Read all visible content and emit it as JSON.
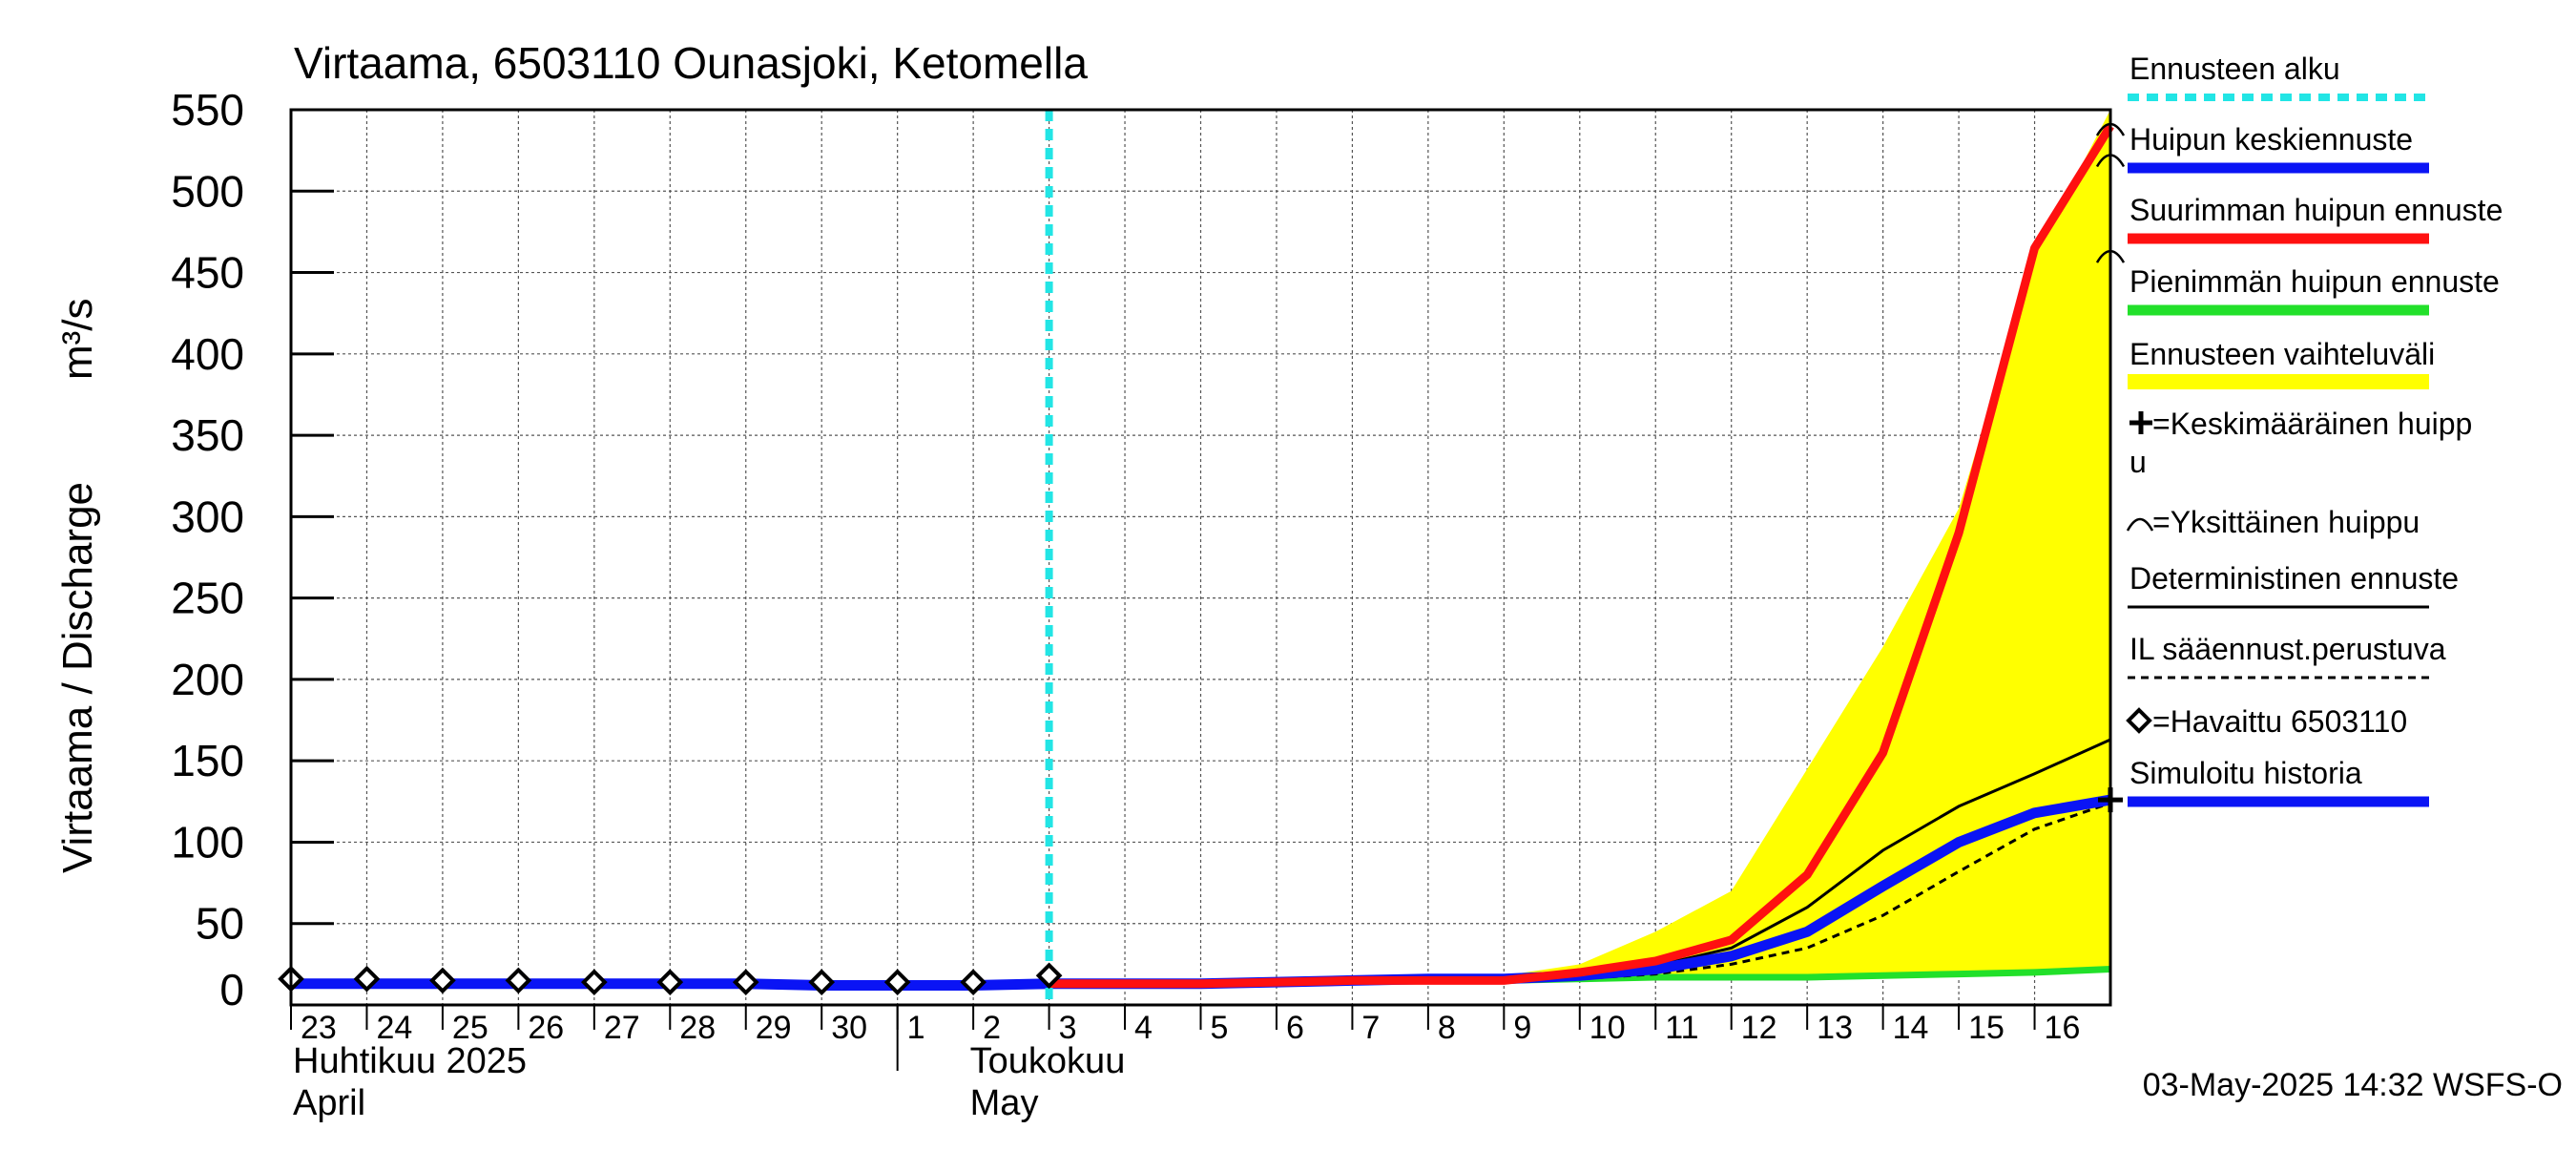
{
  "chart_data": {
    "type": "line",
    "title": "Virtaama, 6503110 Ounasjoki, Ketomella",
    "ylabel": "Virtaama / Discharge",
    "yunit": "m³/s",
    "ylim": [
      0,
      550
    ],
    "yticks": [
      "0",
      "50",
      "100",
      "150",
      "200",
      "250",
      "300",
      "350",
      "400",
      "450",
      "500",
      "550"
    ],
    "ytick_values": [
      0,
      50,
      100,
      150,
      200,
      250,
      300,
      350,
      400,
      450,
      500,
      550
    ],
    "x_days": [
      "23",
      "24",
      "25",
      "26",
      "27",
      "28",
      "29",
      "30",
      "1",
      "2",
      "3",
      "4",
      "5",
      "6",
      "7",
      "8",
      "9",
      "10",
      "11",
      "12",
      "13",
      "14",
      "15",
      "16"
    ],
    "month_labels": [
      {
        "fi": "Huhtikuu  2025",
        "en": "April"
      },
      {
        "fi": "Toukokuu",
        "en": "May"
      }
    ],
    "forecast_start": "2025-05-03",
    "grid": true,
    "timestamp": "03-May-2025 14:32 WSFS-O",
    "colors": {
      "forecast_start": "#22e5e5",
      "mean_peak": "#0a14f5",
      "max_peak": "#ff1010",
      "min_peak": "#22e02a",
      "range": "#ffff00",
      "deterministic": "#000000",
      "observed": "#000000",
      "simulated": "#0a14f5"
    },
    "series": {
      "simulated_history": [
        {
          "x": "2025-04-23",
          "y": 13
        },
        {
          "x": "2025-04-24",
          "y": 13
        },
        {
          "x": "2025-04-25",
          "y": 13
        },
        {
          "x": "2025-04-26",
          "y": 13
        },
        {
          "x": "2025-04-27",
          "y": 13
        },
        {
          "x": "2025-04-28",
          "y": 13
        },
        {
          "x": "2025-04-29",
          "y": 13
        },
        {
          "x": "2025-04-30",
          "y": 12
        },
        {
          "x": "2025-05-01",
          "y": 12
        },
        {
          "x": "2025-05-02",
          "y": 12
        },
        {
          "x": "2025-05-03",
          "y": 13
        }
      ],
      "observed": [
        {
          "x": "2025-04-23",
          "y": 16
        },
        {
          "x": "2025-04-24",
          "y": 16
        },
        {
          "x": "2025-04-25",
          "y": 15
        },
        {
          "x": "2025-04-26",
          "y": 15
        },
        {
          "x": "2025-04-27",
          "y": 14
        },
        {
          "x": "2025-04-28",
          "y": 14
        },
        {
          "x": "2025-04-29",
          "y": 14
        },
        {
          "x": "2025-04-30",
          "y": 14
        },
        {
          "x": "2025-05-01",
          "y": 14
        },
        {
          "x": "2025-05-02",
          "y": 14
        },
        {
          "x": "2025-05-03",
          "y": 18
        }
      ],
      "mean_peak_forecast": [
        {
          "x": "2025-05-03",
          "y": 13
        },
        {
          "x": "2025-05-04",
          "y": 13
        },
        {
          "x": "2025-05-05",
          "y": 13
        },
        {
          "x": "2025-05-06",
          "y": 14
        },
        {
          "x": "2025-05-07",
          "y": 15
        },
        {
          "x": "2025-05-08",
          "y": 16
        },
        {
          "x": "2025-05-09",
          "y": 16
        },
        {
          "x": "2025-05-10",
          "y": 18
        },
        {
          "x": "2025-05-11",
          "y": 22
        },
        {
          "x": "2025-05-12",
          "y": 30
        },
        {
          "x": "2025-05-13",
          "y": 45
        },
        {
          "x": "2025-05-14",
          "y": 73
        },
        {
          "x": "2025-05-15",
          "y": 100
        },
        {
          "x": "2025-05-16",
          "y": 118
        },
        {
          "x": "2025-05-17",
          "y": 126
        }
      ],
      "max_peak_forecast": [
        {
          "x": "2025-05-03",
          "y": 13
        },
        {
          "x": "2025-05-04",
          "y": 13
        },
        {
          "x": "2025-05-05",
          "y": 13
        },
        {
          "x": "2025-05-06",
          "y": 14
        },
        {
          "x": "2025-05-07",
          "y": 15
        },
        {
          "x": "2025-05-08",
          "y": 15
        },
        {
          "x": "2025-05-09",
          "y": 15
        },
        {
          "x": "2025-05-10",
          "y": 20
        },
        {
          "x": "2025-05-11",
          "y": 27
        },
        {
          "x": "2025-05-12",
          "y": 40
        },
        {
          "x": "2025-05-13",
          "y": 80
        },
        {
          "x": "2025-05-14",
          "y": 155
        },
        {
          "x": "2025-05-15",
          "y": 290
        },
        {
          "x": "2025-05-16",
          "y": 465
        },
        {
          "x": "2025-05-17",
          "y": 540
        }
      ],
      "min_peak_forecast": [
        {
          "x": "2025-05-03",
          "y": 13
        },
        {
          "x": "2025-05-04",
          "y": 13
        },
        {
          "x": "2025-05-05",
          "y": 13
        },
        {
          "x": "2025-05-06",
          "y": 14
        },
        {
          "x": "2025-05-07",
          "y": 15
        },
        {
          "x": "2025-05-08",
          "y": 15
        },
        {
          "x": "2025-05-09",
          "y": 15
        },
        {
          "x": "2025-05-10",
          "y": 16
        },
        {
          "x": "2025-05-11",
          "y": 17
        },
        {
          "x": "2025-05-12",
          "y": 17
        },
        {
          "x": "2025-05-13",
          "y": 17
        },
        {
          "x": "2025-05-14",
          "y": 18
        },
        {
          "x": "2025-05-15",
          "y": 19
        },
        {
          "x": "2025-05-16",
          "y": 20
        },
        {
          "x": "2025-05-17",
          "y": 22
        }
      ],
      "range_upper": [
        {
          "x": "2025-05-03",
          "y": 14
        },
        {
          "x": "2025-05-04",
          "y": 14
        },
        {
          "x": "2025-05-05",
          "y": 14
        },
        {
          "x": "2025-05-06",
          "y": 15
        },
        {
          "x": "2025-05-07",
          "y": 16
        },
        {
          "x": "2025-05-08",
          "y": 17
        },
        {
          "x": "2025-05-09",
          "y": 18
        },
        {
          "x": "2025-05-10",
          "y": 25
        },
        {
          "x": "2025-05-11",
          "y": 45
        },
        {
          "x": "2025-05-12",
          "y": 70
        },
        {
          "x": "2025-05-13",
          "y": 145
        },
        {
          "x": "2025-05-14",
          "y": 220
        },
        {
          "x": "2025-05-15",
          "y": 305
        },
        {
          "x": "2025-05-16",
          "y": 460
        },
        {
          "x": "2025-05-17",
          "y": 550
        }
      ],
      "range_lower": [
        {
          "x": "2025-05-03",
          "y": 12
        },
        {
          "x": "2025-05-04",
          "y": 12
        },
        {
          "x": "2025-05-05",
          "y": 12
        },
        {
          "x": "2025-05-06",
          "y": 13
        },
        {
          "x": "2025-05-07",
          "y": 14
        },
        {
          "x": "2025-05-08",
          "y": 14
        },
        {
          "x": "2025-05-09",
          "y": 14
        },
        {
          "x": "2025-05-10",
          "y": 15
        },
        {
          "x": "2025-05-11",
          "y": 16
        },
        {
          "x": "2025-05-12",
          "y": 16
        },
        {
          "x": "2025-05-13",
          "y": 16
        },
        {
          "x": "2025-05-14",
          "y": 17
        },
        {
          "x": "2025-05-15",
          "y": 18
        },
        {
          "x": "2025-05-16",
          "y": 19
        },
        {
          "x": "2025-05-17",
          "y": 21
        }
      ],
      "deterministic_forecast": [
        {
          "x": "2025-05-03",
          "y": 13
        },
        {
          "x": "2025-05-04",
          "y": 13
        },
        {
          "x": "2025-05-05",
          "y": 13
        },
        {
          "x": "2025-05-06",
          "y": 14
        },
        {
          "x": "2025-05-07",
          "y": 15
        },
        {
          "x": "2025-05-08",
          "y": 16
        },
        {
          "x": "2025-05-09",
          "y": 16
        },
        {
          "x": "2025-05-10",
          "y": 19
        },
        {
          "x": "2025-05-11",
          "y": 24
        },
        {
          "x": "2025-05-12",
          "y": 35
        },
        {
          "x": "2025-05-13",
          "y": 60
        },
        {
          "x": "2025-05-14",
          "y": 95
        },
        {
          "x": "2025-05-15",
          "y": 122
        },
        {
          "x": "2025-05-16",
          "y": 142
        },
        {
          "x": "2025-05-17",
          "y": 163
        }
      ],
      "il_weather_forecast": [
        {
          "x": "2025-05-03",
          "y": 13
        },
        {
          "x": "2025-05-04",
          "y": 13
        },
        {
          "x": "2025-05-05",
          "y": 13
        },
        {
          "x": "2025-05-06",
          "y": 14
        },
        {
          "x": "2025-05-07",
          "y": 15
        },
        {
          "x": "2025-05-08",
          "y": 15
        },
        {
          "x": "2025-05-09",
          "y": 15
        },
        {
          "x": "2025-05-10",
          "y": 16
        },
        {
          "x": "2025-05-11",
          "y": 19
        },
        {
          "x": "2025-05-12",
          "y": 25
        },
        {
          "x": "2025-05-13",
          "y": 35
        },
        {
          "x": "2025-05-14",
          "y": 55
        },
        {
          "x": "2025-05-15",
          "y": 82
        },
        {
          "x": "2025-05-16",
          "y": 108
        },
        {
          "x": "2025-05-17",
          "y": 124
        }
      ],
      "single_peaks": [
        {
          "x": "2025-05-17",
          "y": 540
        },
        {
          "x": "2025-05-17",
          "y": 521
        },
        {
          "x": "2025-05-17",
          "y": 462
        }
      ],
      "mean_peak_marker": {
        "x": "2025-05-17",
        "y": 126
      }
    },
    "legend": {
      "placement": "right",
      "items": [
        {
          "key": "forecast_start",
          "label": "Ennusteen alku",
          "style": "dotted",
          "color": "#22e5e5"
        },
        {
          "key": "mean_peak",
          "label": "Huipun keskiennuste",
          "style": "thick",
          "color": "#0a14f5"
        },
        {
          "key": "max_peak",
          "label": "Suurimman huipun ennuste",
          "style": "thick",
          "color": "#ff1010"
        },
        {
          "key": "min_peak",
          "label": "Pienimmän huipun ennuste",
          "style": "thick",
          "color": "#22e02a"
        },
        {
          "key": "range",
          "label": "Ennusteen vaihteluväli",
          "style": "band",
          "color": "#ffff00"
        },
        {
          "key": "mean_marker",
          "label": "=Keskimääräinen huipp",
          "label2": "u",
          "style": "plus",
          "color": "#000000"
        },
        {
          "key": "single_peak",
          "label": "=Yksittäinen huippu",
          "style": "arc",
          "color": "#000000"
        },
        {
          "key": "deterministic",
          "label": "Deterministinen ennuste",
          "style": "thin",
          "color": "#000000"
        },
        {
          "key": "il",
          "label": "IL sääennust.perustuva",
          "style": "dashed",
          "color": "#000000"
        },
        {
          "key": "observed",
          "label": "=Havaittu 6503110",
          "style": "diamond",
          "color": "#000000"
        },
        {
          "key": "simulated",
          "label": "Simuloitu historia",
          "style": "thick",
          "color": "#0a14f5"
        }
      ]
    }
  }
}
